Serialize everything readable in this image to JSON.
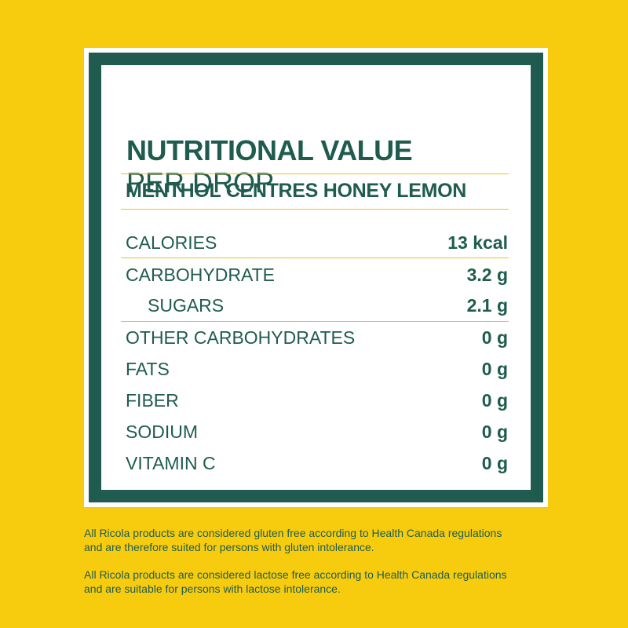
{
  "header": {
    "title": "NUTRITIONAL VALUE",
    "subtitle": "PER DROP"
  },
  "product": {
    "name": "MENTHOL CENTRES HONEY LEMON"
  },
  "nutrition": [
    {
      "label": "CALORIES",
      "value": "13 kcal"
    },
    {
      "label": "CARBOHYDRATE",
      "value": "3.2 g"
    },
    {
      "label": "SUGARS",
      "value": "2.1 g"
    },
    {
      "label": "OTHER CARBOHYDRATES",
      "value": "0 g"
    },
    {
      "label": "FATS",
      "value": "0 g"
    },
    {
      "label": "FIBER",
      "value": "0 g"
    },
    {
      "label": "SODIUM",
      "value": "0 g"
    },
    {
      "label": "VITAMIN C",
      "value": "0 g"
    }
  ],
  "footnotes": [
    {
      "line1": "All Ricola products are considered gluten free according to Health Canada regulations",
      "line2": "and are therefore suited for persons with gluten intolerance."
    },
    {
      "line1": "All Ricola products are considered lactose free according to Health Canada regulations",
      "line2": "and are suitable for persons with lactose intolerance."
    }
  ],
  "colors": {
    "background": "#F7CC0E",
    "brand_green": "#1F5C4F",
    "divider_yellow": "#F2C500",
    "card": "#FFFFFF"
  }
}
